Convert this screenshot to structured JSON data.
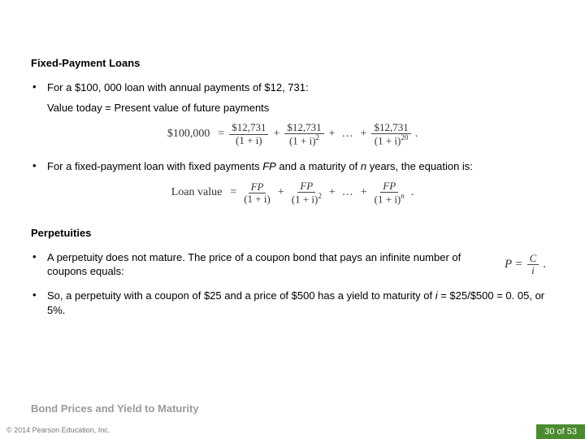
{
  "headings": {
    "fixed": "Fixed-Payment Loans",
    "perp": "Perpetuities",
    "footer": "Bond Prices and Yield to Maturity"
  },
  "bullets": {
    "b1": "For a $100, 000 loan with annual payments of $12, 731:",
    "sub1": "Value today = Present value of future payments",
    "b2_pre": "For a fixed-payment loan with fixed payments ",
    "b2_fp": "FP",
    "b2_mid": " and a maturity of ",
    "b2_n": "n",
    "b2_post": " years, the equation is:",
    "b3": "A perpetuity does not mature. The price of a coupon bond that pays an infinite number of coupons equals:",
    "b4_pre": "So, a perpetuity with a coupon of $25 and a price of $500 has a yield to maturity of ",
    "b4_i": "i",
    "b4_post": " = $25/$500 = 0. 05, or 5%."
  },
  "eq1": {
    "lhs": "$100,000",
    "num": "$12,731",
    "den_base": "(1 + i)",
    "exp2": "2",
    "exp20": "20"
  },
  "eq2": {
    "lhs": "Loan value",
    "num": "FP",
    "den_base": "(1 + i)",
    "exp2": "2",
    "expn": "n"
  },
  "eq3": {
    "P": "P",
    "C": "C",
    "i": "i"
  },
  "footer": {
    "copyright": "© 2014 Pearson Education, Inc.",
    "page": "30 of 53"
  },
  "glyphs": {
    "bullet": "•",
    "equals": "=",
    "plus": "+",
    "dots": "…",
    "period": "."
  }
}
